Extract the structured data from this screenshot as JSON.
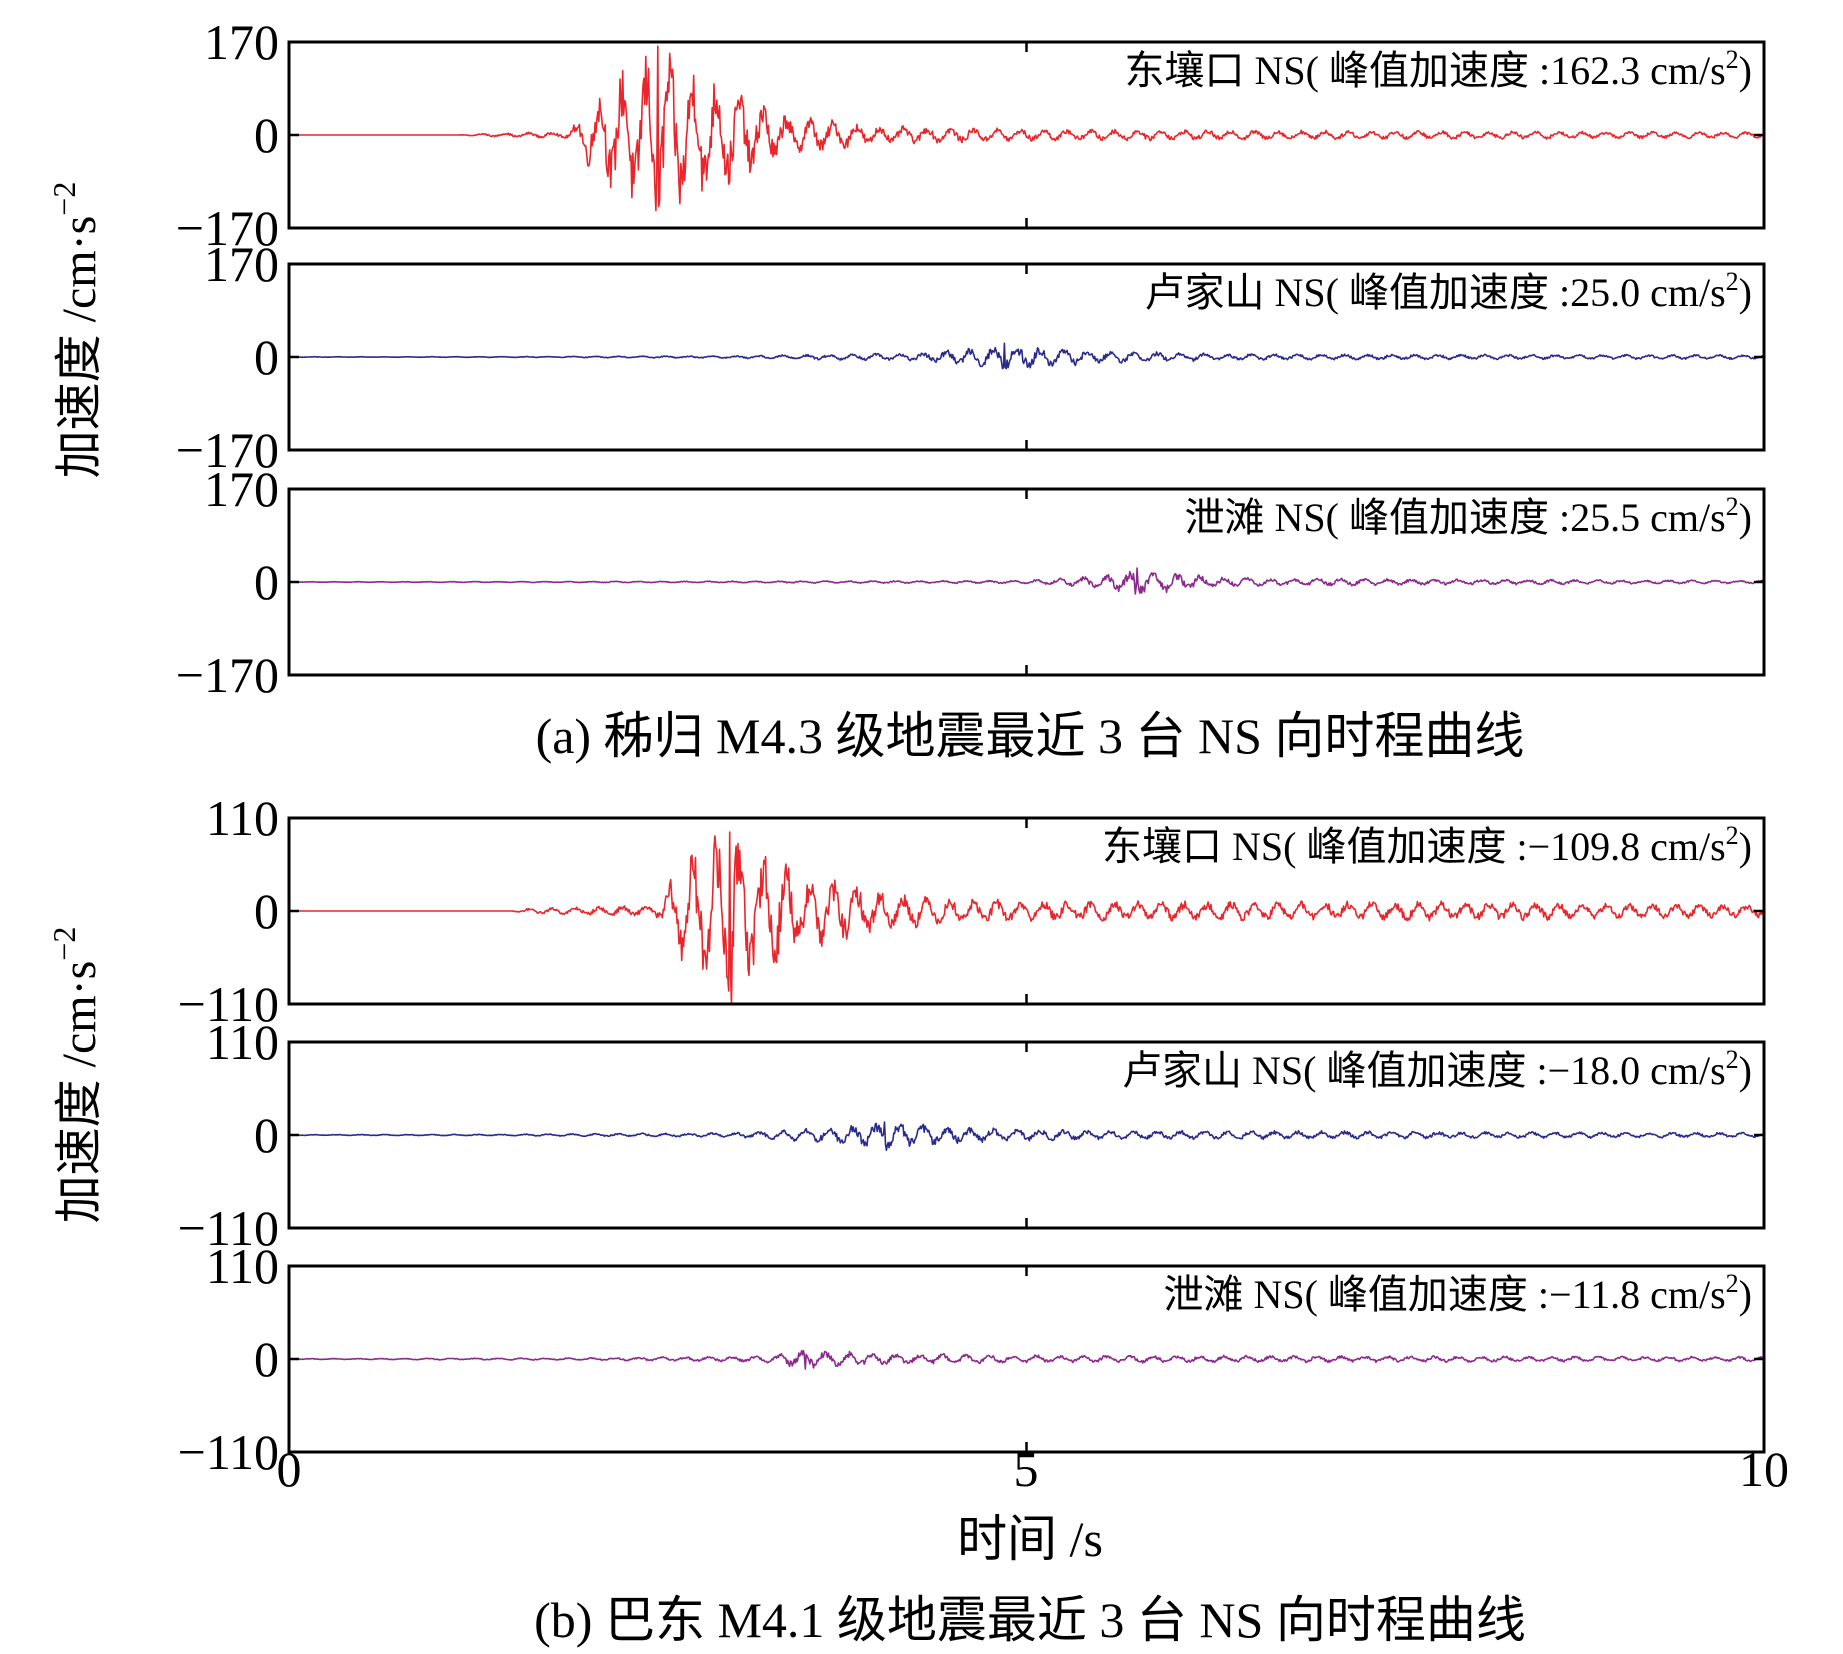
{
  "figure": {
    "y_axis_label": "加速度 /cm·s",
    "y_axis_label_exp": "−2",
    "x_axis_label": "时间 /s",
    "x_ticks": [
      "0",
      "5",
      "10"
    ]
  },
  "chart_data": [
    {
      "type": "line",
      "group": "a",
      "caption": "(a) 秭归 M4.3 级地震最近 3 台 NS 向时程曲线",
      "xlabel": "时间 /s",
      "ylabel": "加速度 /cm·s−2",
      "xlim": [
        0,
        10
      ],
      "panels": [
        {
          "annotation": "东壤口 NS( 峰值加速度 :162.3 cm/s",
          "annotation_sup": "2",
          "annotation_close": ")",
          "ylim": [
            -170,
            170
          ],
          "y_ticks": [
            "170",
            "0",
            "−170"
          ],
          "color": "#e8262b",
          "series": {
            "name": "东壤口 NS",
            "peak_acceleration": 162.3,
            "peak_time": 2.5,
            "envelope": {
              "t": [
                0,
                1.15,
                1.3,
                1.9,
                2.0,
                2.3,
                2.5,
                2.9,
                3.4,
                4.0,
                5.0,
                7.0,
                10.0
              ],
              "a": [
                0,
                0,
                3,
                7,
                50,
                140,
                162.3,
                110,
                40,
                18,
                12,
                9,
                6
              ]
            }
          }
        },
        {
          "annotation": "卢家山 NS( 峰值加速度 :25.0 cm/s",
          "annotation_sup": "2",
          "annotation_close": ")",
          "ylim": [
            -170,
            170
          ],
          "y_ticks": [
            "170",
            "0",
            "−170"
          ],
          "color": "#2a2a8c",
          "series": {
            "name": "卢家山 NS",
            "peak_acceleration": 25.0,
            "peak_time": 4.85,
            "envelope": {
              "t": [
                0,
                1.5,
                3.0,
                4.3,
                4.85,
                5.5,
                6.5,
                10.0
              ],
              "a": [
                0.5,
                0.8,
                2.5,
                8,
                25,
                12,
                6,
                4
              ]
            }
          }
        },
        {
          "annotation": "泄滩 NS( 峰值加速度 :25.5 cm/s",
          "annotation_sup": "2",
          "annotation_close": ")",
          "ylim": [
            -170,
            170
          ],
          "y_ticks": [
            "170",
            "0",
            "−170"
          ],
          "color": "#8b2a8c",
          "series": {
            "name": "泄滩 NS",
            "peak_acceleration": 25.5,
            "peak_time": 5.75,
            "envelope": {
              "t": [
                0,
                2.5,
                5.0,
                5.5,
                5.75,
                6.3,
                7.5,
                10.0
              ],
              "a": [
                0.5,
                1.5,
                3,
                12,
                25.5,
                10,
                6,
                3
              ]
            }
          }
        }
      ]
    },
    {
      "type": "line",
      "group": "b",
      "caption": "(b) 巴东 M4.1 级地震最近 3 台 NS 向时程曲线",
      "xlabel": "时间 /s",
      "ylabel": "加速度 /cm·s−2",
      "xlim": [
        0,
        10
      ],
      "panels": [
        {
          "annotation": "东壤口 NS( 峰值加速度 :−109.8 cm/s",
          "annotation_sup": "2",
          "annotation_close": ")",
          "ylim": [
            -110,
            110
          ],
          "y_ticks": [
            "110",
            "0",
            "−110"
          ],
          "color": "#e8262b",
          "series": {
            "name": "东壤口 NS",
            "peak_acceleration": -109.8,
            "peak_time": 3.0,
            "envelope": {
              "t": [
                0,
                1.5,
                1.6,
                2.5,
                2.65,
                3.0,
                3.5,
                4.0,
                4.5,
                6.0,
                8.0,
                10.0
              ],
              "a": [
                0,
                0,
                3,
                8,
                60,
                109.8,
                50,
                25,
                15,
                12,
                12,
                8
              ]
            }
          }
        },
        {
          "annotation": "卢家山 NS( 峰值加速度 :−18.0 cm/s",
          "annotation_sup": "2",
          "annotation_close": ")",
          "ylim": [
            -110,
            110
          ],
          "y_ticks": [
            "110",
            "0",
            "−110"
          ],
          "color": "#2a2a8c",
          "series": {
            "name": "卢家山 NS",
            "peak_acceleration": -18.0,
            "peak_time": 4.05,
            "envelope": {
              "t": [
                0,
                1.5,
                3.0,
                3.7,
                4.05,
                4.6,
                5.5,
                10.0
              ],
              "a": [
                0.5,
                1,
                3,
                10,
                18,
                9,
                6,
                3
              ]
            }
          }
        },
        {
          "annotation": "泄滩 NS( 峰值加速度 :−11.8 cm/s",
          "annotation_sup": "2",
          "annotation_close": ")",
          "ylim": [
            -110,
            110
          ],
          "y_ticks": [
            "110",
            "0",
            "−110"
          ],
          "color": "#8b2a8c",
          "series": {
            "name": "泄滩 NS",
            "peak_acceleration": -11.8,
            "peak_time": 3.5,
            "envelope": {
              "t": [
                0,
                2.0,
                3.2,
                3.5,
                4.0,
                5.0,
                10.0
              ],
              "a": [
                0.5,
                1.5,
                4,
                11.8,
                7,
                5,
                3
              ]
            }
          }
        }
      ]
    }
  ]
}
